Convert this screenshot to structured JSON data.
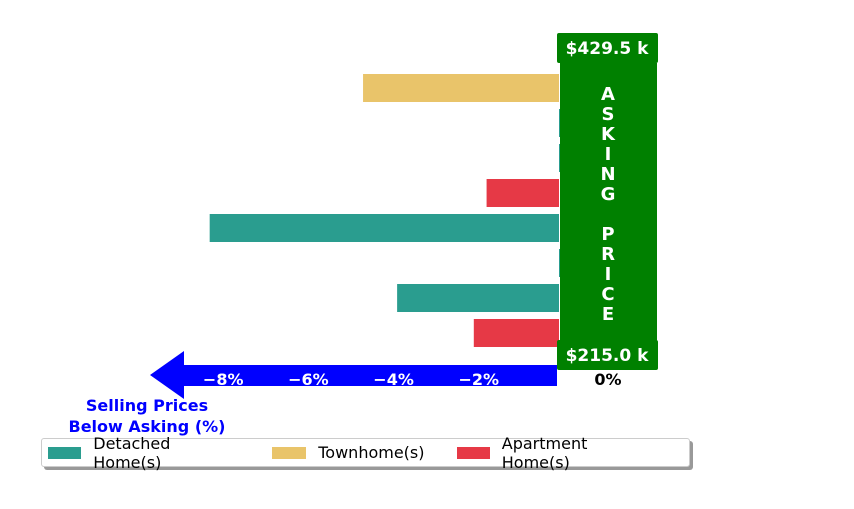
{
  "chart_data": {
    "type": "bar",
    "orientation": "horizontal",
    "xlabel_lines": [
      "Selling Prices",
      "Below Asking (%)"
    ],
    "x_ticks": [
      "−8%",
      "−6%",
      "−4%",
      "−2%",
      "0%"
    ],
    "xlim": [
      -8.5,
      1.1
    ],
    "price_max_label": "$429.5 k",
    "price_min_label": "$215.0 k",
    "asking_label": "ASKING PRICE",
    "bars": [
      {
        "series": "Townhome(s)",
        "value": -4.6
      },
      {
        "series": "Detached Home(s)",
        "value": 1.1
      },
      {
        "series": "Detached Home(s)",
        "value": 1.1
      },
      {
        "series": "Apartment Home(s)",
        "value": -1.7
      },
      {
        "series": "Detached Home(s)",
        "value": -8.2
      },
      {
        "series": "Detached Home(s)",
        "value": 1.1
      },
      {
        "series": "Detached Home(s)",
        "value": -3.8
      },
      {
        "series": "Apartment Home(s)",
        "value": -2.0
      }
    ],
    "legend": [
      {
        "name": "Detached Home(s)",
        "color": "#2a9d8f"
      },
      {
        "name": "Townhome(s)",
        "color": "#e9c46a"
      },
      {
        "name": "Apartment Home(s)",
        "color": "#e63946"
      }
    ],
    "colors": {
      "arrow": "#0000ff",
      "asking_box": "#008000",
      "xlabel": "#0000ff"
    }
  }
}
